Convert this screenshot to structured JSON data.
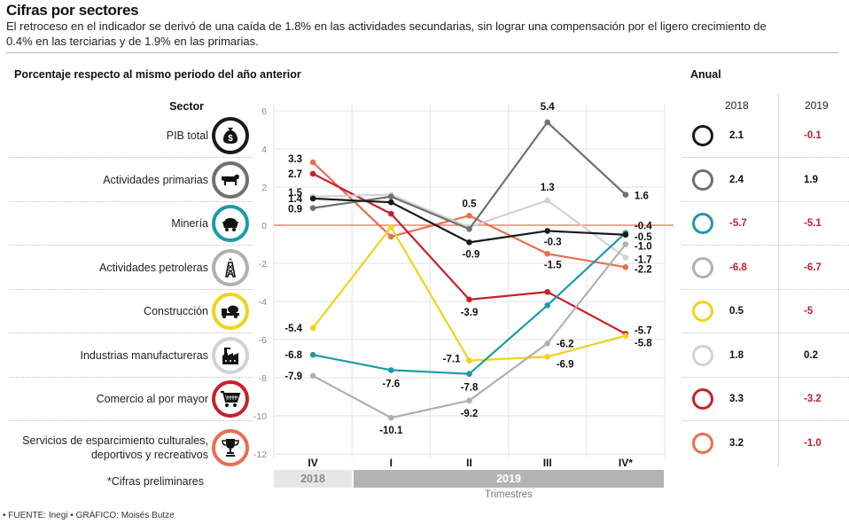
{
  "header": {
    "title": "Cifras por sectores",
    "subtitle": "El retroceso en el indicador se derivó de una caída de 1.8% en las actividades secundarias, sin lograr una compensación por el ligero crecimiento de 0.4% en las terciarias y de 1.9% en las primarias."
  },
  "sector_heading": "Sector",
  "anual": {
    "heading": "Anual",
    "col_2018": "2018",
    "col_2019": "2019",
    "negative_color": "#c0212b",
    "positive_color": "#111111"
  },
  "sectors": [
    {
      "label": "PIB total",
      "icon": "money-bag-icon",
      "color": "#1a1a1a",
      "anual_2018": "2.1",
      "anual_2019": "-0.1"
    },
    {
      "label": "Actividades primarias",
      "icon": "cow-icon",
      "color": "#707070",
      "anual_2018": "2.4",
      "anual_2019": "1.9"
    },
    {
      "label": "Minería",
      "icon": "mine-cart-icon",
      "color": "#1e9aa8",
      "anual_2018": "-5.7",
      "anual_2019": "-5.1"
    },
    {
      "label": "Actividades petroleras",
      "icon": "oil-rig-icon",
      "color": "#b0b0b0",
      "anual_2018": "-6.8",
      "anual_2019": "-6.7"
    },
    {
      "label": "Construcción",
      "icon": "cement-truck-icon",
      "color": "#f2d21b",
      "anual_2018": "0.5",
      "anual_2019": "-5"
    },
    {
      "label": "Industrias manufactureras",
      "icon": "factory-icon",
      "color": "#d2d2d2",
      "anual_2018": "1.8",
      "anual_2019": "0.2"
    },
    {
      "label": "Comercio al por mayor",
      "icon": "shopping-cart-icon",
      "color": "#c8202a",
      "anual_2018": "3.3",
      "anual_2019": "-3.2"
    },
    {
      "label": "Servicios de esparcimiento culturales,\ndeportivos y recreativos",
      "icon": "trophy-icon",
      "color": "#e8704f",
      "anual_2018": "3.2",
      "anual_2019": "-1.0"
    }
  ],
  "footer": {
    "note": "*Cifras preliminares",
    "source": "• FUENTE: Inegi • GRÁFICO: Moisés Butze"
  },
  "chart_data": {
    "type": "line",
    "title": "Porcentaje respecto al mismo periodo del año anterior",
    "xlabel": "Trimestres",
    "ylabel": "",
    "categories": [
      "IV",
      "I",
      "II",
      "III",
      "IV*"
    ],
    "year_groups": [
      {
        "label": "2018",
        "categories": [
          "IV"
        ]
      },
      {
        "label": "2019",
        "categories": [
          "I",
          "II",
          "III",
          "IV*"
        ]
      }
    ],
    "ylim": [
      -12,
      6
    ],
    "yticks": [
      6,
      4,
      2,
      0,
      -2,
      -4,
      -6,
      -8,
      -10,
      -12
    ],
    "grid": true,
    "zero_line_color": "#e8704f",
    "series": [
      {
        "name": "PIB total",
        "color": "#1a1a1a",
        "values": [
          1.4,
          1.2,
          -0.9,
          -0.3,
          -0.5
        ],
        "labels": [
          "1.4",
          null,
          "-0.9",
          "-0.3",
          "-0.5"
        ]
      },
      {
        "name": "Actividades primarias",
        "color": "#707070",
        "values": [
          0.9,
          1.5,
          -0.2,
          5.4,
          1.6
        ],
        "labels": [
          "0.9",
          null,
          null,
          "5.4",
          "1.6"
        ]
      },
      {
        "name": "Minería",
        "color": "#1e9aa8",
        "values": [
          -6.8,
          -7.6,
          -7.8,
          -4.2,
          -0.4
        ],
        "labels": [
          "-6.8",
          "-7.6",
          "-7.8",
          null,
          "-0.4"
        ]
      },
      {
        "name": "Actividades petroleras",
        "color": "#b0b0b0",
        "values": [
          -7.9,
          -10.1,
          -9.2,
          -6.2,
          -1.0
        ],
        "labels": [
          "-7.9",
          "-10.1",
          "-9.2",
          "-6.2",
          "-1.0"
        ]
      },
      {
        "name": "Construcción",
        "color": "#f2d21b",
        "values": [
          -5.4,
          -0.1,
          -7.1,
          -6.9,
          -5.8
        ],
        "labels": [
          "-5.4",
          null,
          "-7.1",
          "-6.9",
          "-5.8"
        ]
      },
      {
        "name": "Industrias manufactureras",
        "color": "#d2d2d2",
        "values": [
          1.5,
          1.6,
          -0.1,
          1.3,
          -1.7
        ],
        "labels": [
          "1.5",
          null,
          null,
          "1.3",
          "-1.7"
        ]
      },
      {
        "name": "Comercio al por mayor",
        "color": "#c8202a",
        "values": [
          2.7,
          0.6,
          -3.9,
          -3.5,
          -5.7
        ],
        "labels": [
          "2.7",
          null,
          "-3.9",
          null,
          "-5.7"
        ]
      },
      {
        "name": "Servicios de esparcimiento culturales, deportivos y recreativos",
        "color": "#e8704f",
        "values": [
          3.3,
          -0.6,
          0.5,
          -1.5,
          -2.2
        ],
        "labels": [
          "3.3",
          null,
          "0.5",
          "-1.5",
          "-2.2"
        ]
      }
    ]
  }
}
